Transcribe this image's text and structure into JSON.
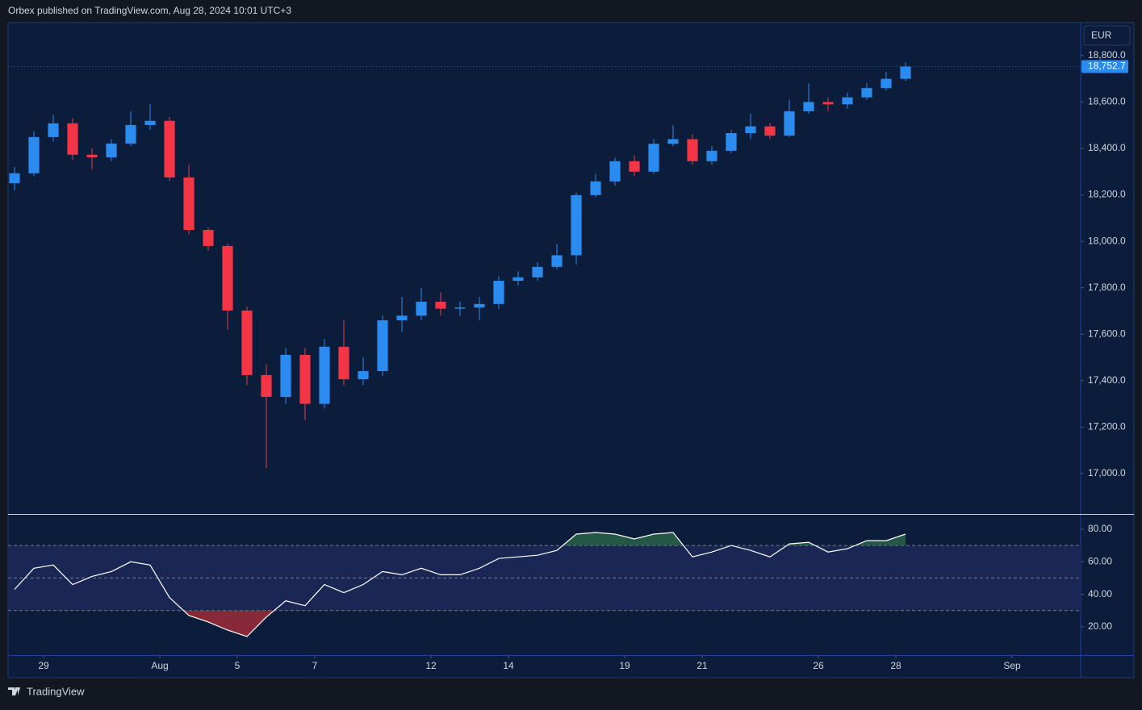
{
  "header": {
    "text": "Orbex published on TradingView.com, Aug 28, 2024 10:01 UTC+3"
  },
  "footer": {
    "brand": "TradingView"
  },
  "chart_data": [
    {
      "type": "candlestick",
      "currency": "EUR",
      "up_color": "#2a8cf0",
      "down_color": "#f23645",
      "x": [
        -0.75,
        -0.25,
        0.25,
        0.75,
        1.25,
        1.75,
        2.25,
        2.75,
        3.25,
        3.75,
        4.25,
        4.75,
        5.25,
        5.75,
        6.25,
        6.75,
        7.25,
        7.75,
        8.25,
        8.75,
        9.25,
        9.75,
        10.25,
        10.75,
        11.25,
        11.75,
        12.25,
        12.75,
        13.25,
        13.75,
        14.25,
        14.75,
        15.25,
        15.75,
        16.25,
        16.75,
        17.25,
        17.75,
        18.25,
        18.75,
        19.25,
        19.75,
        20.25,
        20.75,
        21.25,
        21.75,
        22.25
      ],
      "open": [
        18250,
        18293,
        18449,
        18508,
        18373,
        18362,
        18421,
        18501,
        18519,
        18275,
        18049,
        17980,
        17702,
        17424,
        17330,
        17511,
        17300,
        17546,
        17406,
        17441,
        17660,
        17680,
        17740,
        17710,
        17715,
        17730,
        17830,
        17845,
        17890,
        17940,
        18199,
        18258,
        18345,
        18300,
        18420,
        18440,
        18345,
        18390,
        18466,
        18495,
        18455,
        18560,
        18600,
        18590,
        18620,
        18660,
        18700
      ],
      "high": [
        18320,
        18475,
        18545,
        18530,
        18400,
        18440,
        18560,
        18590,
        18535,
        18330,
        18060,
        17990,
        17720,
        17470,
        17540,
        17540,
        17580,
        17660,
        17500,
        17680,
        17760,
        17800,
        17780,
        17740,
        17760,
        17850,
        17870,
        17910,
        17990,
        18210,
        18290,
        18360,
        18370,
        18440,
        18500,
        18460,
        18410,
        18480,
        18550,
        18510,
        18610,
        18680,
        18620,
        18640,
        18680,
        18730,
        18770
      ],
      "low": [
        18220,
        18280,
        18430,
        18350,
        18310,
        18345,
        18410,
        18480,
        18260,
        18030,
        17960,
        17620,
        17380,
        17024,
        17300,
        17230,
        17280,
        17380,
        17380,
        17420,
        17610,
        17660,
        17680,
        17680,
        17660,
        17710,
        17810,
        17830,
        17880,
        17900,
        18190,
        18240,
        18280,
        18290,
        18410,
        18330,
        18330,
        18380,
        18440,
        18440,
        18450,
        18550,
        18560,
        18570,
        18610,
        18650,
        18690
      ],
      "close": [
        18293,
        18449,
        18508,
        18373,
        18362,
        18421,
        18501,
        18519,
        18275,
        18049,
        17980,
        17702,
        17424,
        17330,
        17511,
        17300,
        17546,
        17406,
        17441,
        17660,
        17680,
        17740,
        17710,
        17715,
        17730,
        17830,
        17845,
        17890,
        17940,
        18199,
        18258,
        18345,
        18300,
        18420,
        18440,
        18345,
        18390,
        18466,
        18495,
        18455,
        18560,
        18600,
        18590,
        18620,
        18660,
        18700,
        18752.7
      ],
      "last_close_label": "18,752.7",
      "xlim": [
        -0.917,
        26.771
      ],
      "xticks": [
        {
          "value": 0,
          "label": "29"
        },
        {
          "value": 3,
          "label": "Aug"
        },
        {
          "value": 5,
          "label": "5"
        },
        {
          "value": 7,
          "label": "7"
        },
        {
          "value": 10,
          "label": "12"
        },
        {
          "value": 12,
          "label": "14"
        },
        {
          "value": 15,
          "label": "19"
        },
        {
          "value": 17,
          "label": "21"
        },
        {
          "value": 20,
          "label": "26"
        },
        {
          "value": 22,
          "label": "28"
        },
        {
          "value": 25,
          "label": "Sep"
        }
      ],
      "ylim": [
        16826,
        18942
      ],
      "yticks": [
        {
          "value": 17000,
          "label": "17,000.0"
        },
        {
          "value": 17200,
          "label": "17,200.0"
        },
        {
          "value": 17400,
          "label": "17,400.0"
        },
        {
          "value": 17600,
          "label": "17,600.0"
        },
        {
          "value": 17800,
          "label": "17,800.0"
        },
        {
          "value": 18000,
          "label": "18,000.0"
        },
        {
          "value": 18200,
          "label": "18,200.0"
        },
        {
          "value": 18400,
          "label": "18,400.0"
        },
        {
          "value": 18600,
          "label": "18,600.0"
        },
        {
          "value": 18800,
          "label": "18,800.0"
        }
      ]
    },
    {
      "type": "line",
      "color": "#ffffff",
      "overbought_color": "#2e6b4a",
      "oversold_color": "#b22d3a",
      "x": [
        -0.75,
        -0.25,
        0.25,
        0.75,
        1.25,
        1.75,
        2.25,
        2.75,
        3.25,
        3.75,
        4.25,
        4.75,
        5.25,
        5.75,
        6.25,
        6.75,
        7.25,
        7.75,
        8.25,
        8.75,
        9.25,
        9.75,
        10.25,
        10.75,
        11.25,
        11.75,
        12.25,
        12.75,
        13.25,
        13.75,
        14.25,
        14.75,
        15.25,
        15.75,
        16.25,
        16.75,
        17.25,
        17.75,
        18.25,
        18.75,
        19.25,
        19.75,
        20.25,
        20.75,
        21.25,
        21.75,
        22.25
      ],
      "values": [
        43,
        56,
        58,
        46,
        51,
        54,
        60,
        58,
        38,
        27,
        23,
        18,
        14,
        26,
        36,
        33,
        46,
        41,
        46,
        54,
        52,
        56,
        52,
        52,
        56,
        62,
        63,
        64,
        67,
        77,
        78,
        77,
        74,
        77,
        78,
        63,
        66,
        70,
        67,
        63,
        71,
        72,
        66,
        68,
        73,
        73,
        77
      ],
      "levels": [
        30,
        50,
        70
      ],
      "xlim": [
        -0.917,
        26.771
      ],
      "ylim": [
        2.6,
        88.9
      ],
      "yticks": [
        {
          "value": 20,
          "label": "20.00"
        },
        {
          "value": 40,
          "label": "40.00"
        },
        {
          "value": 60,
          "label": "60.00"
        },
        {
          "value": 80,
          "label": "80.00"
        }
      ]
    }
  ]
}
